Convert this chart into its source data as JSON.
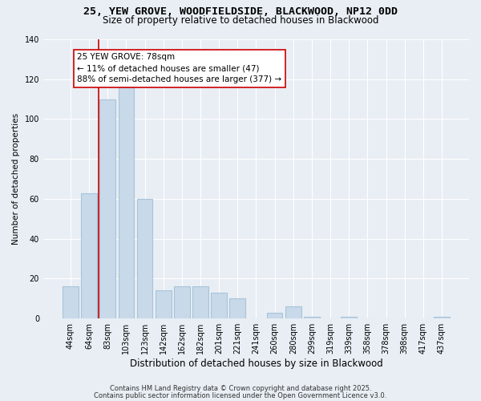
{
  "title1": "25, YEW GROVE, WOODFIELDSIDE, BLACKWOOD, NP12 0DD",
  "title2": "Size of property relative to detached houses in Blackwood",
  "xlabel": "Distribution of detached houses by size in Blackwood",
  "ylabel": "Number of detached properties",
  "categories": [
    "44sqm",
    "64sqm",
    "83sqm",
    "103sqm",
    "123sqm",
    "142sqm",
    "162sqm",
    "182sqm",
    "201sqm",
    "221sqm",
    "241sqm",
    "260sqm",
    "280sqm",
    "299sqm",
    "319sqm",
    "339sqm",
    "358sqm",
    "378sqm",
    "398sqm",
    "417sqm",
    "437sqm"
  ],
  "values": [
    16,
    63,
    110,
    116,
    60,
    14,
    16,
    16,
    13,
    10,
    0,
    3,
    6,
    1,
    0,
    1,
    0,
    0,
    0,
    0,
    1
  ],
  "bar_color": "#c8d9ea",
  "bar_edge_color": "#a8c4d8",
  "marker_line_color": "#cc0000",
  "annotation_title": "25 YEW GROVE: 78sqm",
  "annotation_line1": "← 11% of detached houses are smaller (47)",
  "annotation_line2": "88% of semi-detached houses are larger (377) →",
  "annotation_box_facecolor": "#ffffff",
  "annotation_box_edgecolor": "#cc0000",
  "ylim": [
    0,
    140
  ],
  "yticks": [
    0,
    20,
    40,
    60,
    80,
    100,
    120,
    140
  ],
  "footer1": "Contains HM Land Registry data © Crown copyright and database right 2025.",
  "footer2": "Contains public sector information licensed under the Open Government Licence v3.0.",
  "background_color": "#e8eef4",
  "grid_color": "#ffffff",
  "title1_fontsize": 9.5,
  "title2_fontsize": 8.5,
  "xlabel_fontsize": 8.5,
  "ylabel_fontsize": 7.5,
  "tick_fontsize": 7,
  "annotation_fontsize": 7.5,
  "footer_fontsize": 6
}
